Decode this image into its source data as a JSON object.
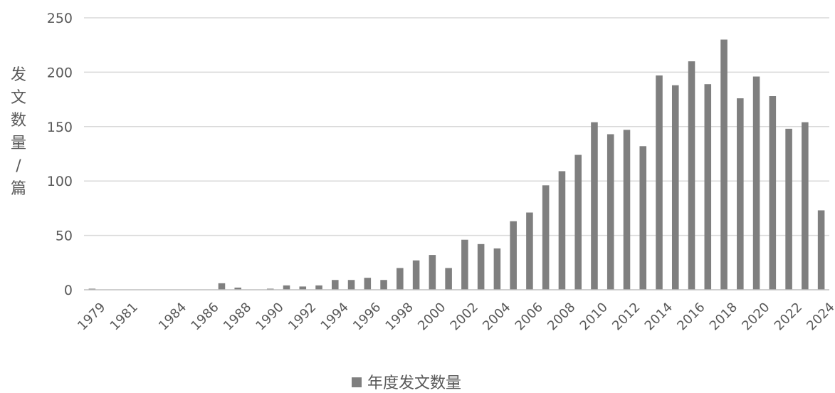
{
  "chart_data": {
    "type": "bar",
    "title": "",
    "xlabel": "",
    "ylabel": "发文数量/篇",
    "ylim": [
      0,
      250
    ],
    "yticks": [
      0,
      50,
      100,
      150,
      200,
      250
    ],
    "grid": true,
    "legend_position": "bottom",
    "bar_color": "#7f7f7f",
    "categories": [
      "1979",
      "1980",
      "1981",
      "1982",
      "1983",
      "1984",
      "1985",
      "1986",
      "1987",
      "1988",
      "1989",
      "1990",
      "1991",
      "1992",
      "1993",
      "1994",
      "1995",
      "1996",
      "1997",
      "1998",
      "1999",
      "2000",
      "2001",
      "2002",
      "2003",
      "2004",
      "2005",
      "2006",
      "2007",
      "2008",
      "2009",
      "2010",
      "2011",
      "2012",
      "2013",
      "2014",
      "2015",
      "2016",
      "2017",
      "2018",
      "2019",
      "2020",
      "2021",
      "2022",
      "2023",
      "2024"
    ],
    "x_tick_labels": [
      "1979",
      "1981",
      "1984",
      "1986",
      "1988",
      "1990",
      "1992",
      "1994",
      "1996",
      "1998",
      "2000",
      "2002",
      "2004",
      "2006",
      "2008",
      "2010",
      "2012",
      "2014",
      "2016",
      "2018",
      "2020",
      "2022",
      "2024"
    ],
    "series": [
      {
        "name": "年度发文数量",
        "values": [
          1,
          0,
          0,
          0,
          0,
          0,
          0,
          0,
          6,
          2,
          0,
          1,
          4,
          3,
          4,
          9,
          9,
          11,
          9,
          20,
          27,
          32,
          20,
          46,
          42,
          38,
          63,
          71,
          96,
          109,
          124,
          154,
          143,
          147,
          132,
          197,
          188,
          210,
          189,
          230,
          176,
          196,
          178,
          148,
          154,
          73
        ]
      }
    ]
  }
}
